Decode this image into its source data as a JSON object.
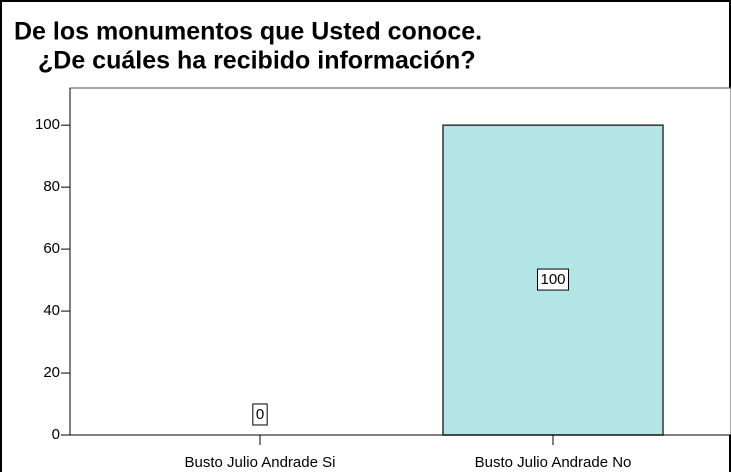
{
  "chart_data": {
    "type": "bar",
    "title": [
      "De los monumentos que Usted conoce.",
      "¿De cuáles ha recibido información?"
    ],
    "categories": [
      "Busto Julio Andrade Si",
      "Busto Julio Andrade No"
    ],
    "values": [
      0,
      100
    ],
    "color": "#b3e5e6",
    "ylim": [
      0,
      112
    ],
    "yticks": [
      0,
      20,
      40,
      60,
      80,
      100
    ]
  }
}
